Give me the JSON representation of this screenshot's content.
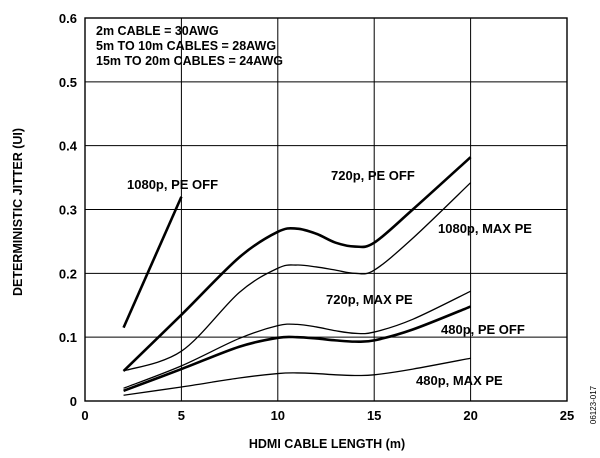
{
  "chart_data": {
    "type": "line",
    "xlabel": "HDMI CABLE LENGTH (m)",
    "ylabel": "DETERMINISTIC JITTER (UI)",
    "xlim": [
      0,
      25
    ],
    "ylim": [
      0,
      0.6
    ],
    "x_ticks": [
      "0",
      "5",
      "10",
      "15",
      "20",
      "25"
    ],
    "y_ticks": [
      "0",
      "0.1",
      "0.2",
      "0.3",
      "0.4",
      "0.5",
      "0.6"
    ],
    "grid": true,
    "notes": [
      "2m CABLE = 30AWG",
      "5m TO 10m CABLES = 28AWG",
      "15m TO 20m CABLES = 24AWG"
    ],
    "figure_id": "06123-017",
    "series": [
      {
        "name": "1080p, PE OFF",
        "heavy": true,
        "x": [
          2,
          5
        ],
        "y": [
          0.115,
          0.32
        ]
      },
      {
        "name": "720p, PE OFF",
        "heavy": true,
        "x": [
          2,
          5,
          8,
          10,
          11,
          12,
          13,
          14,
          15,
          17,
          20
        ],
        "y": [
          0.047,
          0.135,
          0.225,
          0.265,
          0.27,
          0.262,
          0.248,
          0.242,
          0.248,
          0.3,
          0.382
        ]
      },
      {
        "name": "1080p, MAX PE",
        "heavy": false,
        "x": [
          2,
          5,
          8,
          10,
          11,
          12,
          13,
          14,
          15,
          17,
          20
        ],
        "y": [
          0.047,
          0.078,
          0.17,
          0.208,
          0.213,
          0.21,
          0.205,
          0.2,
          0.205,
          0.255,
          0.342
        ]
      },
      {
        "name": "720p, MAX PE",
        "heavy": false,
        "x": [
          2,
          5,
          8,
          10,
          11,
          12,
          13,
          14,
          15,
          17,
          20
        ],
        "y": [
          0.02,
          0.055,
          0.098,
          0.118,
          0.12,
          0.116,
          0.11,
          0.106,
          0.108,
          0.128,
          0.172
        ]
      },
      {
        "name": "480p, PE OFF",
        "heavy": true,
        "x": [
          2,
          5,
          8,
          10,
          11,
          12,
          13,
          14,
          15,
          17,
          20
        ],
        "y": [
          0.016,
          0.05,
          0.085,
          0.099,
          0.1,
          0.098,
          0.095,
          0.093,
          0.095,
          0.112,
          0.148
        ]
      },
      {
        "name": "480p, MAX PE",
        "heavy": false,
        "x": [
          2,
          5,
          8,
          10,
          11,
          12,
          13,
          14,
          15,
          17,
          20
        ],
        "y": [
          0.009,
          0.022,
          0.036,
          0.043,
          0.044,
          0.043,
          0.041,
          0.04,
          0.041,
          0.05,
          0.067
        ]
      }
    ]
  }
}
